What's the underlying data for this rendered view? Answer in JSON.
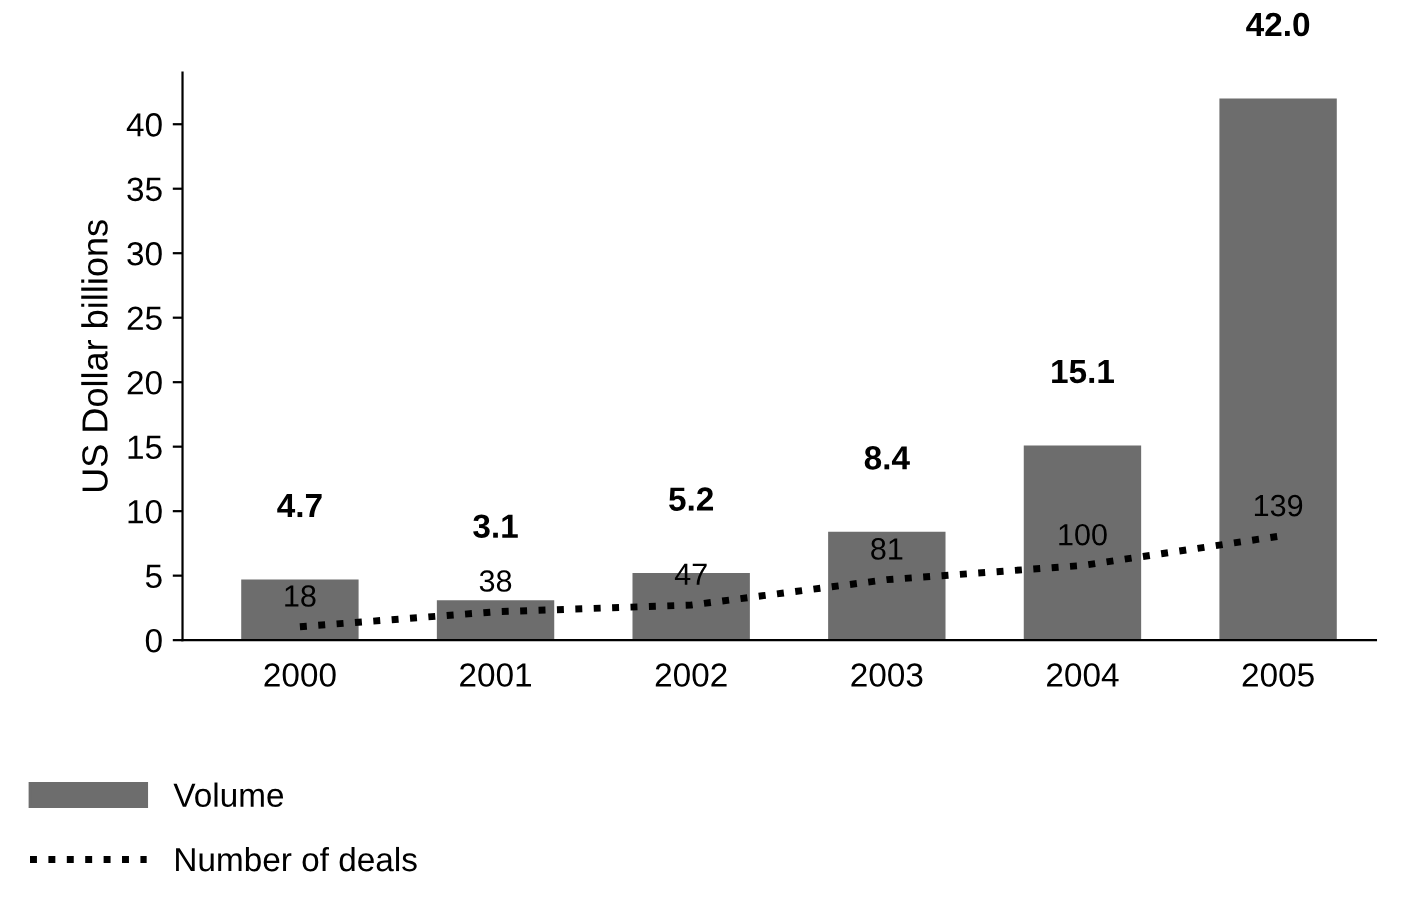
{
  "chart_data": {
    "type": "bar",
    "ylabel": "US Dollar billions",
    "categories": [
      "2000",
      "2001",
      "2002",
      "2003",
      "2004",
      "2005"
    ],
    "series": [
      {
        "name": "Volume",
        "color": "#6d6d6d",
        "values": [
          4.7,
          3.1,
          5.2,
          8.4,
          15.1,
          42.0
        ],
        "value_labels": [
          "4.7",
          "3.1",
          "5.2",
          "8.4",
          "15.1",
          "42.0"
        ]
      },
      {
        "name": "Number of deals",
        "type": "line",
        "axis": "y2",
        "color": "#000000",
        "line_style": "dotted",
        "values": [
          18,
          38,
          47,
          81,
          100,
          139
        ]
      }
    ],
    "ylim": [
      0,
      44
    ],
    "yticks": [
      0,
      5,
      10,
      15,
      20,
      25,
      30,
      35,
      40
    ],
    "y2lim": [
      0,
      760
    ],
    "tick_labels": [
      "x",
      "y"
    ],
    "data_labels": true,
    "grid": false,
    "legend": "bottom",
    "marker": "none"
  }
}
